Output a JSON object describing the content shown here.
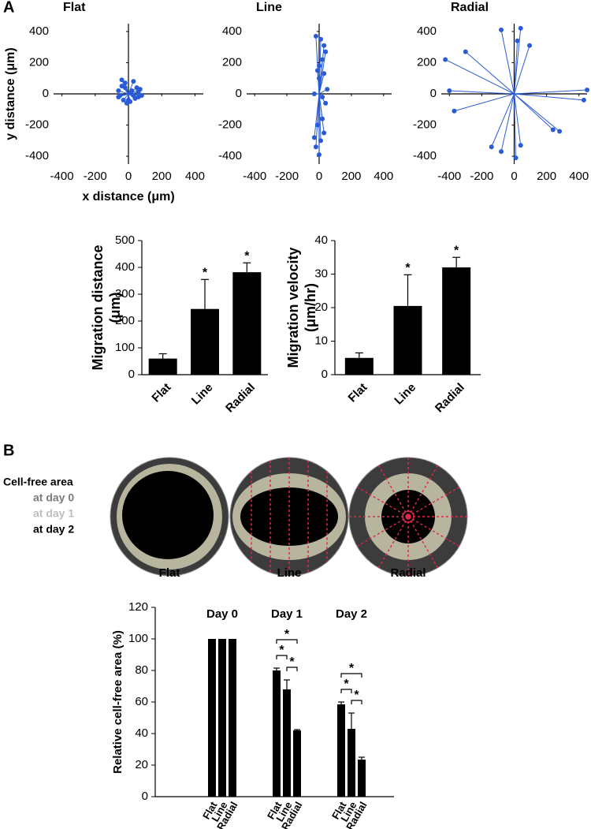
{
  "panel_labels": [
    "A",
    "B"
  ],
  "legend_b": {
    "title": "Cell-free area",
    "items": [
      "at day 0",
      "at day 1",
      "at day 2"
    ],
    "colors": [
      "#7a7a7a",
      "#bdbdbd",
      "#000000"
    ]
  },
  "image_labels": [
    "Flat",
    "Line",
    "Radial"
  ],
  "chart_data": [
    {
      "type": "trajectory",
      "title": "Flat",
      "x_label": "x distance (μm)",
      "y_label": "y distance (μm)",
      "color": "#2a5bd7",
      "x": [
        -40,
        -20,
        30,
        50,
        70,
        60,
        -60,
        -50,
        -30,
        10,
        40,
        60,
        -10,
        20,
        -40,
        80,
        0,
        -60,
        30,
        -20
      ],
      "y": [
        90,
        70,
        80,
        40,
        30,
        10,
        20,
        -10,
        -40,
        -50,
        -30,
        -20,
        -60,
        20,
        50,
        -10,
        -40,
        -20,
        -10,
        40
      ],
      "xlim": [
        -450,
        450
      ],
      "ylim": [
        -450,
        450
      ],
      "xticks": [
        -400,
        -200,
        0,
        200,
        400
      ],
      "yticks": [
        -400,
        -200,
        0,
        200,
        400
      ]
    },
    {
      "type": "trajectory",
      "title": "Line",
      "color": "#2a5bd7",
      "x": [
        -20,
        10,
        30,
        40,
        20,
        0,
        -10,
        30,
        -30,
        -20,
        0,
        10,
        30,
        20,
        -10,
        40,
        50,
        -30,
        20,
        0
      ],
      "y": [
        370,
        350,
        310,
        270,
        220,
        180,
        150,
        130,
        -280,
        -340,
        -390,
        -300,
        -250,
        -160,
        -200,
        -60,
        30,
        0,
        -20,
        100
      ],
      "xlim": [
        -450,
        450
      ],
      "ylim": [
        -450,
        450
      ],
      "xticks": [
        -400,
        -200,
        0,
        200,
        400
      ],
      "yticks": [
        -400,
        -200,
        0,
        200,
        400
      ]
    },
    {
      "type": "trajectory",
      "title": "Radial",
      "color": "#2a5bd7",
      "x": [
        -425,
        -300,
        -400,
        -370,
        -80,
        20,
        40,
        95,
        450,
        430,
        280,
        240,
        40,
        10,
        -80,
        -140
      ],
      "y": [
        220,
        270,
        20,
        -110,
        410,
        340,
        420,
        310,
        25,
        -40,
        -240,
        -230,
        -330,
        -410,
        -370,
        -340
      ],
      "xlim": [
        -450,
        450
      ],
      "ylim": [
        -450,
        450
      ],
      "xticks": [
        -400,
        -200,
        0,
        200,
        400
      ],
      "yticks": [
        -400,
        -200,
        0,
        200,
        400
      ]
    },
    {
      "type": "bar",
      "y_label": "Migration distance (μm)",
      "color": "#000000",
      "categories": [
        "Flat",
        "Line",
        "Radial"
      ],
      "values": [
        60,
        245,
        382
      ],
      "errors": [
        18,
        110,
        35
      ],
      "significance": [
        null,
        "*",
        "*"
      ],
      "ylim": [
        0,
        500
      ],
      "yticks": [
        0,
        100,
        200,
        300,
        400,
        500
      ]
    },
    {
      "type": "bar",
      "y_label": "Migration velocity (μm/hr)",
      "color": "#000000",
      "categories": [
        "Flat",
        "Line",
        "Radial"
      ],
      "values": [
        5,
        20.5,
        32
      ],
      "errors": [
        1.5,
        9.3,
        3
      ],
      "significance": [
        null,
        "*",
        "*"
      ],
      "ylim": [
        0,
        40
      ],
      "yticks": [
        0,
        10,
        20,
        30,
        40
      ]
    },
    {
      "type": "grouped_bar",
      "y_label": "Relative cell-free area (%)",
      "color": "#000000",
      "groups": [
        "Day 0",
        "Day 1",
        "Day 2"
      ],
      "series": [
        {
          "name": "Flat",
          "values": [
            100,
            80,
            58.5
          ],
          "errors": [
            null,
            1.5,
            1.5
          ]
        },
        {
          "name": "Line",
          "values": [
            100,
            68,
            43
          ],
          "errors": [
            null,
            6,
            10
          ]
        },
        {
          "name": "Radial",
          "values": [
            100,
            42,
            23.5
          ],
          "errors": [
            null,
            0.5,
            1.5
          ]
        }
      ],
      "brackets": [
        null,
        [
          "*",
          "*",
          "*"
        ],
        [
          "*",
          "*",
          "*"
        ]
      ],
      "ylim": [
        0,
        120
      ],
      "yticks": [
        0,
        20,
        40,
        60,
        80,
        100,
        120
      ]
    }
  ]
}
